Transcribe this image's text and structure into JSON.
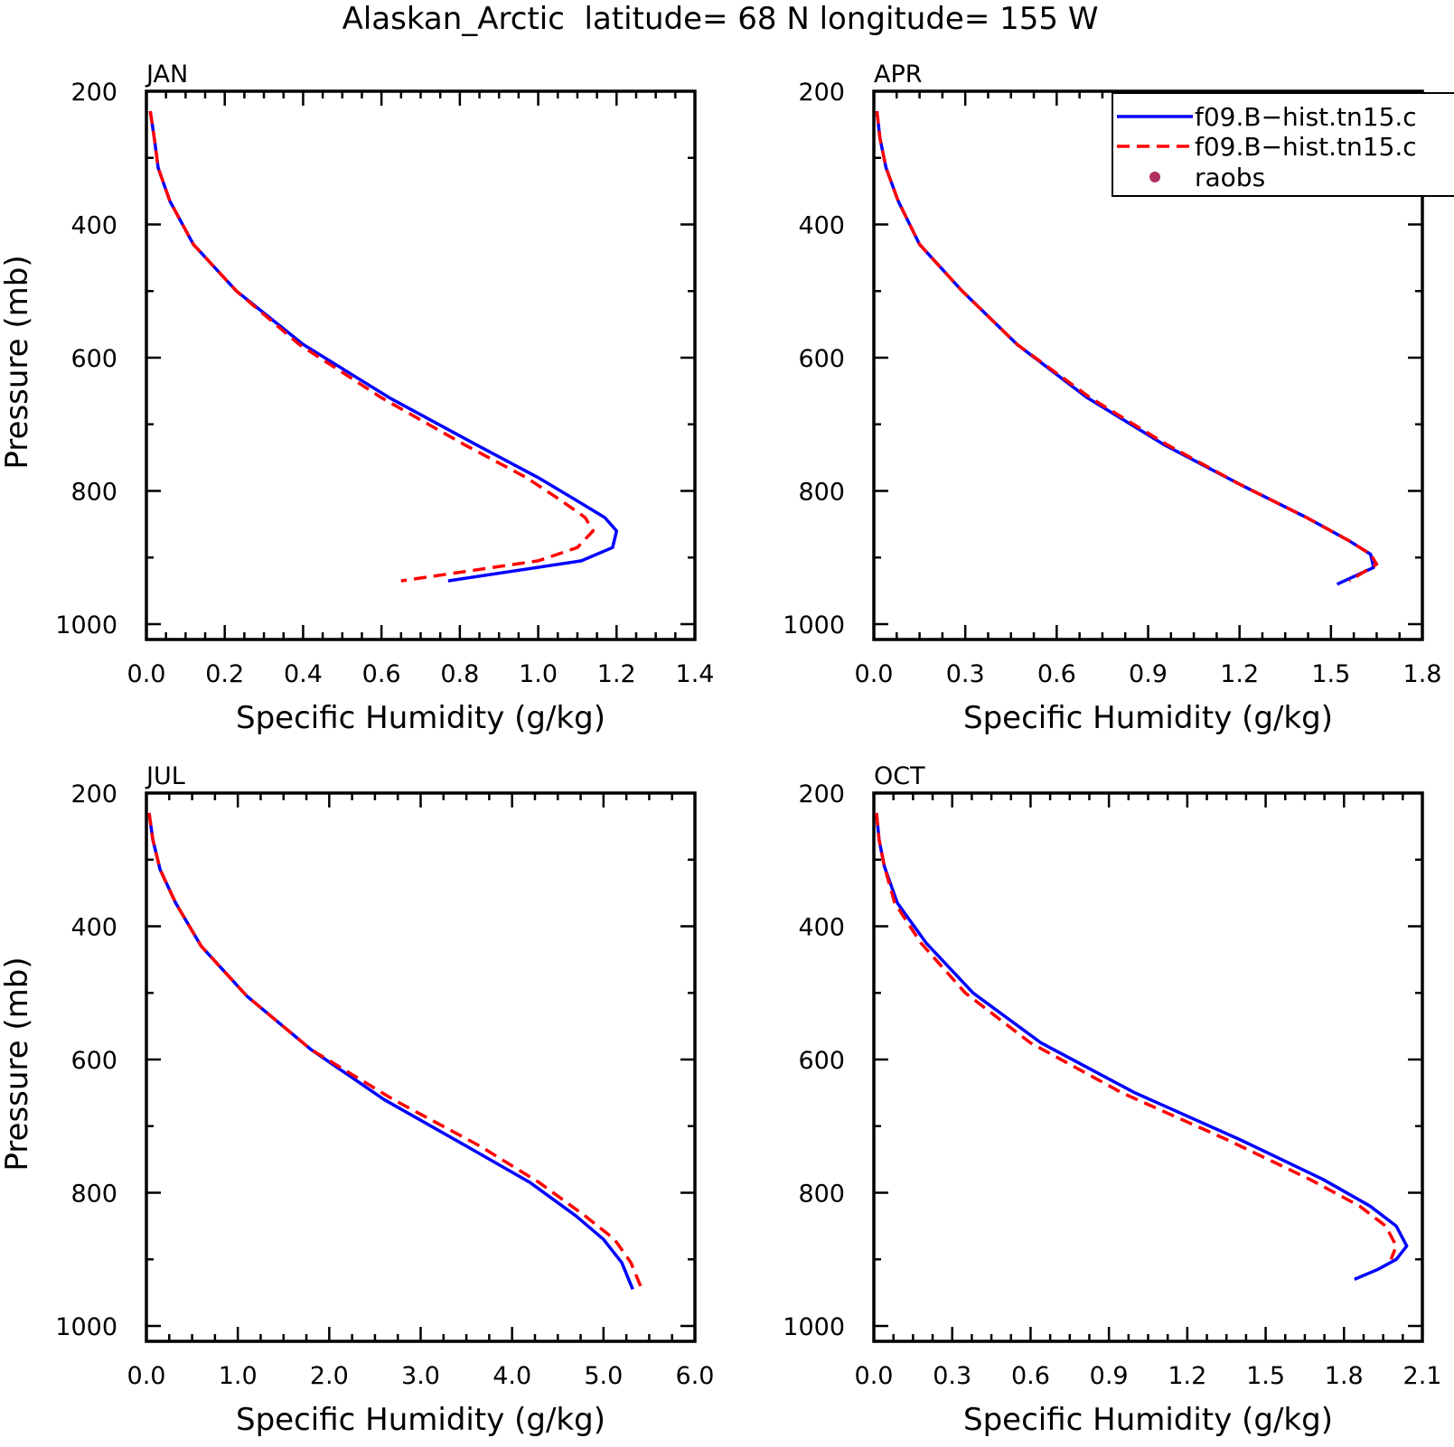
{
  "title": "Alaskan_Arctic  latitude= 68 N longitude= 155 W",
  "colors": {
    "model1": "#0000ff",
    "model2": "#ff0000",
    "raobs": "#b03060"
  },
  "legend": {
    "placement": "top-right of APR panel",
    "entries": [
      {
        "label": "f09.B−hist.tn15.c",
        "style": "solid",
        "color": "#0000ff"
      },
      {
        "label": "f09.B−hist.tn15.c",
        "style": "dashed",
        "color": "#ff0000"
      },
      {
        "label": "raobs",
        "style": "dot",
        "color": "#b03060"
      }
    ]
  },
  "chart_data": [
    {
      "type": "line",
      "title": "JAN",
      "xlabel": "Specific Humidity (g/kg)",
      "ylabel": "Pressure (mb)",
      "xlim": [
        0.0,
        1.4
      ],
      "ylim": [
        1000,
        200
      ],
      "xticks": [
        "0.0",
        "0.2",
        "0.4",
        "0.6",
        "0.8",
        "1.0",
        "1.2",
        "1.4"
      ],
      "yticks": [
        "200",
        "400",
        "600",
        "800",
        "1000"
      ],
      "series": [
        {
          "color": "#0000ff",
          "dash": "solid",
          "x": [
            0.01,
            0.02,
            0.03,
            0.06,
            0.12,
            0.23,
            0.4,
            0.62,
            0.84,
            1.0,
            1.1,
            1.17,
            1.2,
            1.19,
            1.11,
            0.77
          ],
          "y": [
            230,
            270,
            315,
            365,
            430,
            500,
            580,
            660,
            730,
            780,
            815,
            840,
            860,
            885,
            905,
            935
          ]
        },
        {
          "color": "#ff0000",
          "dash": "dashed",
          "x": [
            0.01,
            0.02,
            0.03,
            0.06,
            0.12,
            0.23,
            0.39,
            0.6,
            0.81,
            0.97,
            1.06,
            1.12,
            1.14,
            1.1,
            1.0,
            0.65
          ],
          "y": [
            230,
            270,
            315,
            365,
            430,
            500,
            580,
            660,
            730,
            780,
            815,
            840,
            860,
            885,
            905,
            935
          ]
        }
      ]
    },
    {
      "type": "line",
      "title": "APR",
      "xlabel": "Specific Humidity (g/kg)",
      "ylabel": "",
      "xlim": [
        0.0,
        1.8
      ],
      "ylim": [
        1000,
        200
      ],
      "xticks": [
        "0.0",
        "0.3",
        "0.6",
        "0.9",
        "1.2",
        "1.5",
        "1.8"
      ],
      "yticks": [
        "200",
        "400",
        "600",
        "800",
        "1000"
      ],
      "series": [
        {
          "color": "#0000ff",
          "dash": "solid",
          "x": [
            0.01,
            0.02,
            0.04,
            0.08,
            0.15,
            0.29,
            0.47,
            0.7,
            0.95,
            1.2,
            1.42,
            1.56,
            1.63,
            1.64,
            1.52
          ],
          "y": [
            230,
            270,
            315,
            365,
            430,
            500,
            580,
            660,
            730,
            790,
            840,
            875,
            895,
            915,
            940
          ]
        },
        {
          "color": "#ff0000",
          "dash": "dashed",
          "x": [
            0.01,
            0.02,
            0.04,
            0.08,
            0.15,
            0.29,
            0.47,
            0.71,
            0.96,
            1.2,
            1.42,
            1.56,
            1.63,
            1.65,
            1.56
          ],
          "y": [
            230,
            270,
            315,
            365,
            430,
            500,
            580,
            660,
            730,
            790,
            840,
            875,
            895,
            910,
            935
          ]
        }
      ]
    },
    {
      "type": "line",
      "title": "JUL",
      "xlabel": "Specific Humidity (g/kg)",
      "ylabel": "Pressure (mb)",
      "xlim": [
        0.0,
        6.0
      ],
      "ylim": [
        1000,
        200
      ],
      "xticks": [
        "0.0",
        "1.0",
        "2.0",
        "3.0",
        "4.0",
        "5.0",
        "6.0"
      ],
      "yticks": [
        "200",
        "400",
        "600",
        "800",
        "1000"
      ],
      "series": [
        {
          "color": "#0000ff",
          "dash": "solid",
          "x": [
            0.03,
            0.07,
            0.15,
            0.32,
            0.6,
            1.1,
            1.8,
            2.6,
            3.5,
            4.2,
            4.7,
            5.0,
            5.2,
            5.32
          ],
          "y": [
            230,
            270,
            315,
            365,
            430,
            505,
            585,
            660,
            730,
            785,
            835,
            870,
            905,
            945
          ]
        },
        {
          "color": "#ff0000",
          "dash": "dashed",
          "x": [
            0.03,
            0.07,
            0.15,
            0.32,
            0.6,
            1.1,
            1.8,
            2.7,
            3.65,
            4.3,
            4.8,
            5.12,
            5.3,
            5.42
          ],
          "y": [
            230,
            270,
            315,
            365,
            430,
            505,
            585,
            660,
            730,
            785,
            835,
            870,
            905,
            945
          ]
        }
      ]
    },
    {
      "type": "line",
      "title": "OCT",
      "xlabel": "Specific Humidity (g/kg)",
      "ylabel": "",
      "xlim": [
        0.0,
        2.1
      ],
      "ylim": [
        1000,
        200
      ],
      "xticks": [
        "0.0",
        "0.3",
        "0.6",
        "0.9",
        "1.2",
        "1.5",
        "1.8",
        "2.1"
      ],
      "yticks": [
        "200",
        "400",
        "600",
        "800",
        "1000"
      ],
      "series": [
        {
          "color": "#0000ff",
          "dash": "solid",
          "x": [
            0.01,
            0.02,
            0.04,
            0.09,
            0.2,
            0.38,
            0.64,
            1.0,
            1.4,
            1.72,
            1.9,
            2.0,
            2.04,
            2.0,
            1.93,
            1.84
          ],
          "y": [
            230,
            270,
            310,
            365,
            425,
            500,
            575,
            650,
            720,
            780,
            820,
            850,
            880,
            900,
            915,
            930
          ]
        },
        {
          "color": "#ff0000",
          "dash": "dashed",
          "x": [
            0.01,
            0.02,
            0.04,
            0.08,
            0.18,
            0.35,
            0.6,
            0.95,
            1.35,
            1.67,
            1.86,
            1.96,
            2.0,
            1.98
          ],
          "y": [
            230,
            270,
            310,
            365,
            425,
            500,
            575,
            650,
            720,
            780,
            820,
            850,
            880,
            900
          ]
        }
      ]
    }
  ]
}
